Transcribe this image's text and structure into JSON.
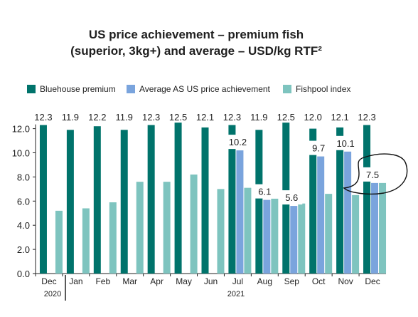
{
  "chart_data": {
    "type": "bar",
    "title_line1": "US price achievement – premium fish",
    "title_line2": "(superior, 3kg+) and average – USD/kg RTF²",
    "categories": [
      "Dec",
      "Jan",
      "Feb",
      "Mar",
      "Apr",
      "May",
      "Jun",
      "Jul",
      "Aug",
      "Sep",
      "Oct",
      "Nov",
      "Dec"
    ],
    "year_labels": [
      "2020",
      "2021"
    ],
    "series": [
      {
        "name": "Bluehouse premium",
        "color": "#00736b",
        "values": [
          12.3,
          11.9,
          12.2,
          11.9,
          12.3,
          12.5,
          12.1,
          12.3,
          11.9,
          12.5,
          12.0,
          12.1,
          12.3
        ]
      },
      {
        "name": "Average AS US price achievement",
        "color": "#7aa4dd",
        "values": [
          null,
          null,
          null,
          null,
          null,
          null,
          null,
          10.2,
          6.1,
          5.6,
          9.7,
          10.1,
          7.5
        ]
      },
      {
        "name": "Fishpool index",
        "color": "#7ec4bf",
        "values": [
          5.2,
          5.4,
          5.9,
          7.6,
          7.6,
          8.2,
          7.0,
          7.1,
          6.2,
          5.8,
          6.6,
          6.5,
          7.5
        ]
      }
    ],
    "ylim": [
      0,
      12.5
    ],
    "yticks": [
      "0.0",
      "2.0",
      "4.0",
      "6.0",
      "8.0",
      "10.0",
      "12.0"
    ],
    "ytick_values": [
      0,
      2,
      4,
      6,
      8,
      10,
      12
    ],
    "legend_position": "top"
  }
}
